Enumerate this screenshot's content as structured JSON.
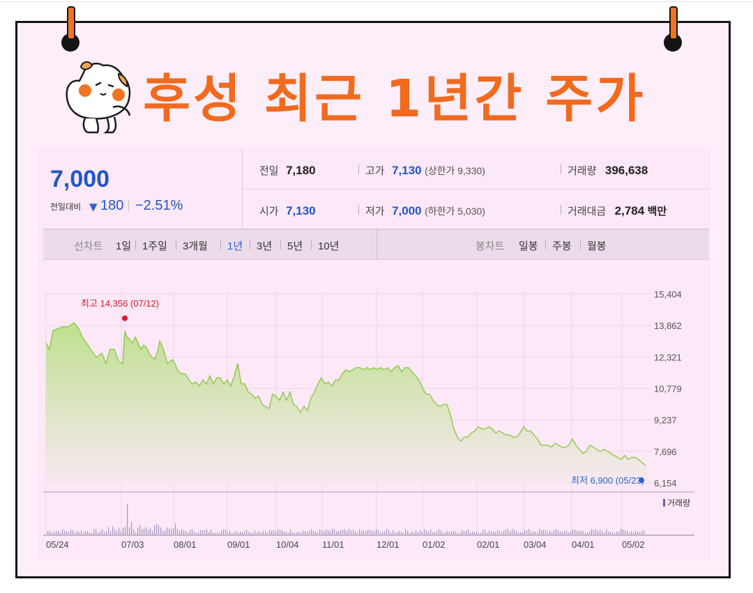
{
  "title": "후성 최근 1년간 주가",
  "quote": {
    "price": "7,000",
    "change_label": "전일대비",
    "change_arrow": "▼",
    "change_value": "180",
    "change_pct": "−2.51%",
    "rows": [
      [
        {
          "label": "전일",
          "value": "7,180",
          "blue": false
        },
        {
          "label": "고가",
          "value": "7,130",
          "blue": true,
          "paren": "(상한가 9,330)"
        },
        {
          "label": "거래량",
          "value": "396,638",
          "blue": false
        }
      ],
      [
        {
          "label": "시가",
          "value": "7,130",
          "blue": true
        },
        {
          "label": "저가",
          "value": "7,000",
          "blue": true,
          "paren": "(하한가 5,030)"
        },
        {
          "label": "거래대금",
          "value": "2,784",
          "blue": false,
          "unit": "백만"
        }
      ]
    ]
  },
  "tabs": {
    "line_label": "선차트",
    "line": [
      "1일",
      "1주일",
      "3개월",
      "1년",
      "3년",
      "5년",
      "10년"
    ],
    "selected": "1년",
    "candle_label": "봉차트",
    "candle": [
      "일봉",
      "주봉",
      "월봉"
    ]
  },
  "colors": {
    "line": "#8cc84b",
    "fill_top": "#bfe08f",
    "fill_bottom": "#f7e9f1",
    "high_marker": "#e0192b",
    "low_marker": "#2b63d4",
    "title": "#f26a1e",
    "pin": "#f37321"
  },
  "chart_data": {
    "type": "area",
    "y_ticks": [
      "15,404",
      "13,862",
      "12,321",
      "10,779",
      "9,237",
      "7,696",
      "6,154"
    ],
    "ylim": [
      6154,
      15404
    ],
    "x_ticks": [
      "05/24",
      "07/03",
      "08/01",
      "09/01",
      "10/04",
      "11/01",
      "12/01",
      "01/02",
      "02/01",
      "03/04",
      "04/01",
      "05/02"
    ],
    "high_annotation": "최고 14,356 (07/12)",
    "low_annotation": "최저 6,900 (05/23)",
    "volume_legend": "거래량",
    "price_series": [
      [
        0,
        13000
      ],
      [
        5,
        12700
      ],
      [
        10,
        13600
      ],
      [
        16,
        13700
      ],
      [
        24,
        13800
      ],
      [
        32,
        13800
      ],
      [
        40,
        14000
      ],
      [
        47,
        13700
      ],
      [
        52,
        13300
      ],
      [
        58,
        13000
      ],
      [
        66,
        12600
      ],
      [
        72,
        12300
      ],
      [
        80,
        12500
      ],
      [
        86,
        12000
      ],
      [
        92,
        12700
      ],
      [
        98,
        12700
      ],
      [
        104,
        12100
      ],
      [
        110,
        12000
      ],
      [
        113,
        13600
      ],
      [
        116,
        13300
      ],
      [
        120,
        13200
      ],
      [
        124,
        13000
      ],
      [
        128,
        13300
      ],
      [
        132,
        13000
      ],
      [
        136,
        12700
      ],
      [
        140,
        12900
      ],
      [
        144,
        12800
      ],
      [
        148,
        12500
      ],
      [
        152,
        12300
      ],
      [
        156,
        12200
      ],
      [
        160,
        12600
      ],
      [
        163,
        13100
      ],
      [
        166,
        12900
      ],
      [
        170,
        12500
      ],
      [
        174,
        12000
      ],
      [
        178,
        12100
      ],
      [
        182,
        12200
      ],
      [
        186,
        11900
      ],
      [
        190,
        11600
      ],
      [
        195,
        11500
      ],
      [
        200,
        11500
      ],
      [
        205,
        11200
      ],
      [
        210,
        11000
      ],
      [
        215,
        11100
      ],
      [
        220,
        10900
      ],
      [
        225,
        11200
      ],
      [
        230,
        11000
      ],
      [
        235,
        11400
      ],
      [
        240,
        11000
      ],
      [
        245,
        11300
      ],
      [
        250,
        11300
      ],
      [
        255,
        11000
      ],
      [
        260,
        11200
      ],
      [
        265,
        10900
      ],
      [
        270,
        11400
      ],
      [
        275,
        12000
      ],
      [
        280,
        11000
      ],
      [
        285,
        11000
      ],
      [
        290,
        10600
      ],
      [
        295,
        10500
      ],
      [
        300,
        10300
      ],
      [
        305,
        10400
      ],
      [
        310,
        10000
      ],
      [
        315,
        9900
      ],
      [
        320,
        9800
      ],
      [
        325,
        10500
      ],
      [
        330,
        10400
      ],
      [
        335,
        10200
      ],
      [
        340,
        10600
      ],
      [
        345,
        10200
      ],
      [
        350,
        10600
      ],
      [
        355,
        10000
      ],
      [
        360,
        9900
      ],
      [
        365,
        9600
      ],
      [
        370,
        9900
      ],
      [
        375,
        9700
      ],
      [
        380,
        10300
      ],
      [
        385,
        10600
      ],
      [
        390,
        11000
      ],
      [
        395,
        11300
      ],
      [
        400,
        11000
      ],
      [
        405,
        11100
      ],
      [
        410,
        10900
      ],
      [
        415,
        11200
      ],
      [
        420,
        11200
      ],
      [
        425,
        11500
      ],
      [
        430,
        11700
      ],
      [
        435,
        11600
      ],
      [
        440,
        11700
      ],
      [
        445,
        11800
      ],
      [
        450,
        11800
      ],
      [
        455,
        11700
      ],
      [
        460,
        11800
      ],
      [
        465,
        11700
      ],
      [
        470,
        11800
      ],
      [
        475,
        11700
      ],
      [
        480,
        11800
      ],
      [
        485,
        11700
      ],
      [
        490,
        11800
      ],
      [
        495,
        11600
      ],
      [
        500,
        11800
      ],
      [
        505,
        11900
      ],
      [
        510,
        11600
      ],
      [
        515,
        11800
      ],
      [
        520,
        11800
      ],
      [
        525,
        11600
      ],
      [
        530,
        11400
      ],
      [
        535,
        11200
      ],
      [
        540,
        10800
      ],
      [
        545,
        10500
      ],
      [
        550,
        10500
      ],
      [
        555,
        10200
      ],
      [
        560,
        10000
      ],
      [
        565,
        9900
      ],
      [
        570,
        10000
      ],
      [
        575,
        10000
      ],
      [
        580,
        9500
      ],
      [
        585,
        8800
      ],
      [
        590,
        8400
      ],
      [
        595,
        8200
      ],
      [
        600,
        8400
      ],
      [
        605,
        8400
      ],
      [
        610,
        8600
      ],
      [
        615,
        8700
      ],
      [
        620,
        8900
      ],
      [
        625,
        8800
      ],
      [
        630,
        8800
      ],
      [
        635,
        8900
      ],
      [
        640,
        8800
      ],
      [
        645,
        8600
      ],
      [
        650,
        8700
      ],
      [
        655,
        8600
      ],
      [
        660,
        8500
      ],
      [
        665,
        8500
      ],
      [
        670,
        8400
      ],
      [
        675,
        8400
      ],
      [
        680,
        8600
      ],
      [
        685,
        8900
      ],
      [
        690,
        8700
      ],
      [
        695,
        8700
      ],
      [
        700,
        8500
      ],
      [
        705,
        8300
      ],
      [
        710,
        8000
      ],
      [
        715,
        8000
      ],
      [
        720,
        8000
      ],
      [
        725,
        7900
      ],
      [
        730,
        8100
      ],
      [
        735,
        8000
      ],
      [
        740,
        7900
      ],
      [
        745,
        7900
      ],
      [
        750,
        8000
      ],
      [
        755,
        8300
      ],
      [
        760,
        8000
      ],
      [
        765,
        7800
      ],
      [
        770,
        7600
      ],
      [
        775,
        7700
      ],
      [
        780,
        8000
      ],
      [
        785,
        7900
      ],
      [
        790,
        7800
      ],
      [
        795,
        7700
      ],
      [
        800,
        7800
      ],
      [
        805,
        7700
      ],
      [
        810,
        7600
      ],
      [
        815,
        7500
      ],
      [
        820,
        7400
      ],
      [
        825,
        7300
      ],
      [
        830,
        7500
      ],
      [
        835,
        7300
      ],
      [
        840,
        7400
      ],
      [
        845,
        7400
      ],
      [
        850,
        7300
      ],
      [
        855,
        7150
      ],
      [
        860,
        7000
      ]
    ],
    "high_point": [
      113,
      14356
    ],
    "low_point": [
      860,
      6900
    ]
  }
}
